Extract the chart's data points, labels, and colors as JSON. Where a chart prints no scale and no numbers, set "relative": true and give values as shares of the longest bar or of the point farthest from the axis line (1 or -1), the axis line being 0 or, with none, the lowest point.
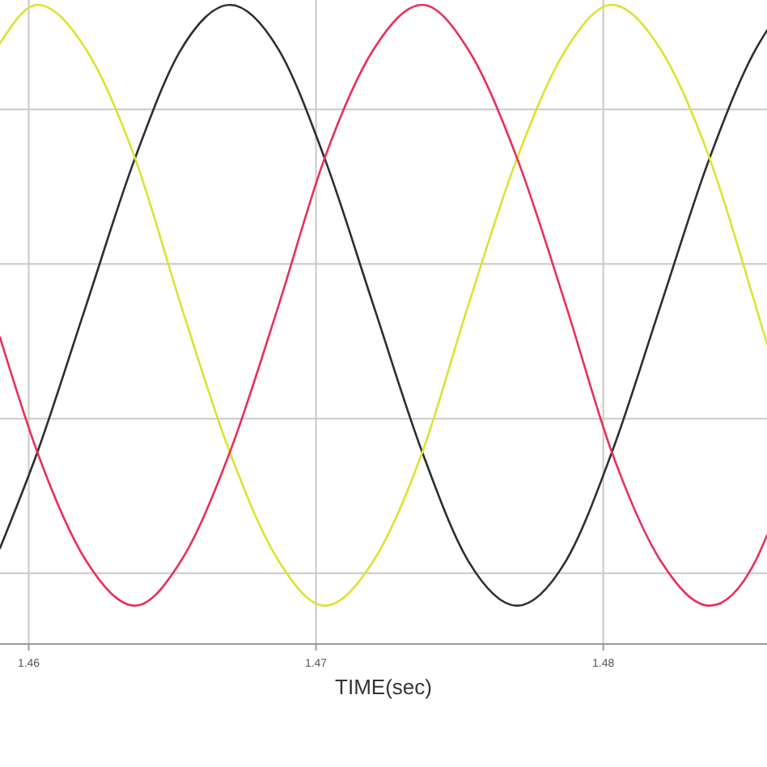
{
  "chart_data": {
    "type": "line",
    "xlabel": "TIME(sec)",
    "relative": true,
    "x": [
      1.459,
      1.4603,
      1.462,
      1.4637,
      1.4653,
      1.467,
      1.4687,
      1.4703,
      1.472,
      1.4737,
      1.4753,
      1.477,
      1.4787,
      1.4803,
      1.482,
      1.4837,
      1.4853,
      1.4857
    ],
    "xlim": [
      1.459,
      1.4857
    ],
    "xticks": [
      1.46,
      1.47,
      1.48
    ],
    "tick_labels": "x",
    "grid": true,
    "line_style": "solid",
    "series": [
      {
        "color": "#2e2e2e",
        "values": [
          0.15,
          0.3,
          0.53,
          0.76,
          0.93,
          1,
          0.93,
          0.76,
          0.53,
          0.3,
          0.13,
          0.06,
          0.13,
          0.3,
          0.53,
          0.76,
          0.93,
          0.96
        ]
      },
      {
        "color": "#dde330",
        "values": [
          0.94,
          1,
          0.93,
          0.76,
          0.53,
          0.3,
          0.13,
          0.06,
          0.13,
          0.3,
          0.53,
          0.76,
          0.93,
          1,
          0.93,
          0.76,
          0.53,
          0.47
        ]
      },
      {
        "color": "#e8305a",
        "values": [
          0.48,
          0.3,
          0.13,
          0.06,
          0.13,
          0.3,
          0.53,
          0.76,
          0.93,
          1,
          0.93,
          0.76,
          0.53,
          0.3,
          0.13,
          0.06,
          0.13,
          0.17
        ]
      }
    ]
  }
}
